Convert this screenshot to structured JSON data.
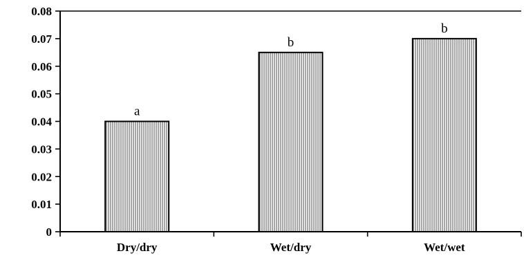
{
  "chart_data": {
    "type": "bar",
    "categories": [
      "Dry/dry",
      "Wet/dry",
      "Wet/wet"
    ],
    "values": [
      0.04,
      0.065,
      0.07
    ],
    "annotations": [
      "a",
      "b",
      "b"
    ],
    "ylim": [
      0,
      0.08
    ],
    "yticks": [
      "0",
      "0.01",
      "0.02",
      "0.03",
      "0.04",
      "0.05",
      "0.06",
      "0.07",
      "0.08"
    ],
    "bar_fill": "vertical-hatch",
    "colors": {
      "bar_stroke": "#000000",
      "hatch": "#555555",
      "axis": "#000000"
    },
    "grid": false
  }
}
